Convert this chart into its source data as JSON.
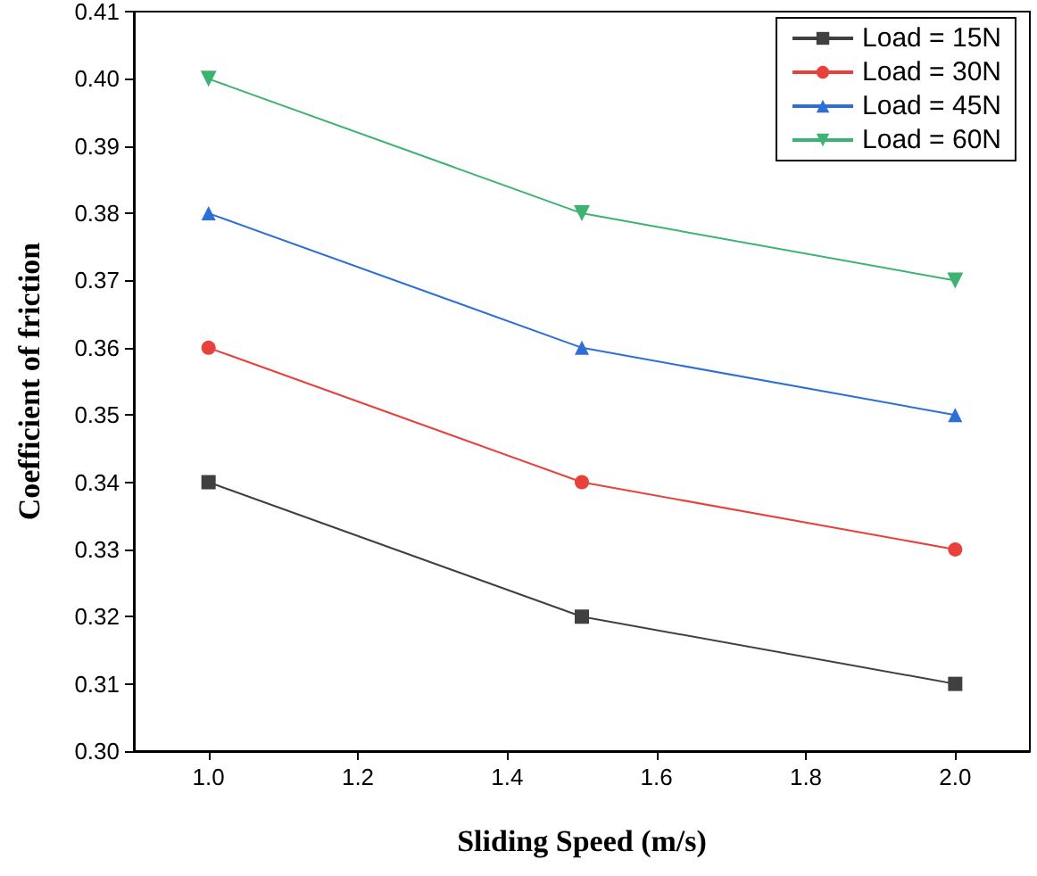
{
  "chart_data": {
    "type": "line",
    "xlabel": "Sliding Speed (m/s)",
    "ylabel": "Coefficient of friction",
    "x": [
      1.0,
      1.5,
      2.0
    ],
    "series": [
      {
        "name": "Load = 15N",
        "color": "#404040",
        "marker": "square",
        "values": [
          0.34,
          0.32,
          0.31
        ]
      },
      {
        "name": "Load = 30N",
        "color": "#e8413c",
        "marker": "circle",
        "values": [
          0.36,
          0.34,
          0.33
        ]
      },
      {
        "name": "Load = 45N",
        "color": "#2d6fd6",
        "marker": "triangle",
        "values": [
          0.38,
          0.36,
          0.35
        ]
      },
      {
        "name": "Load = 60N",
        "color": "#3cb371",
        "marker": "triangle-down",
        "values": [
          0.4,
          0.38,
          0.37
        ]
      }
    ],
    "xlim": [
      0.9,
      2.1
    ],
    "xticks": [
      {
        "value": 1.0,
        "label": "1.0"
      },
      {
        "value": 1.2,
        "label": "1.2"
      },
      {
        "value": 1.4,
        "label": "1.4"
      },
      {
        "value": 1.6,
        "label": "1.6"
      },
      {
        "value": 1.8,
        "label": "1.8"
      },
      {
        "value": 2.0,
        "label": "2.0"
      }
    ],
    "ylim": [
      0.3,
      0.41
    ],
    "yticks": [
      {
        "value": 0.3,
        "label": "0.30"
      },
      {
        "value": 0.31,
        "label": "0.31"
      },
      {
        "value": 0.32,
        "label": "0.32"
      },
      {
        "value": 0.33,
        "label": "0.33"
      },
      {
        "value": 0.34,
        "label": "0.34"
      },
      {
        "value": 0.35,
        "label": "0.35"
      },
      {
        "value": 0.36,
        "label": "0.36"
      },
      {
        "value": 0.37,
        "label": "0.37"
      },
      {
        "value": 0.38,
        "label": "0.38"
      },
      {
        "value": 0.39,
        "label": "0.39"
      },
      {
        "value": 0.4,
        "label": "0.40"
      },
      {
        "value": 0.41,
        "label": "0.41"
      }
    ],
    "legend": "top right",
    "grid": false
  }
}
